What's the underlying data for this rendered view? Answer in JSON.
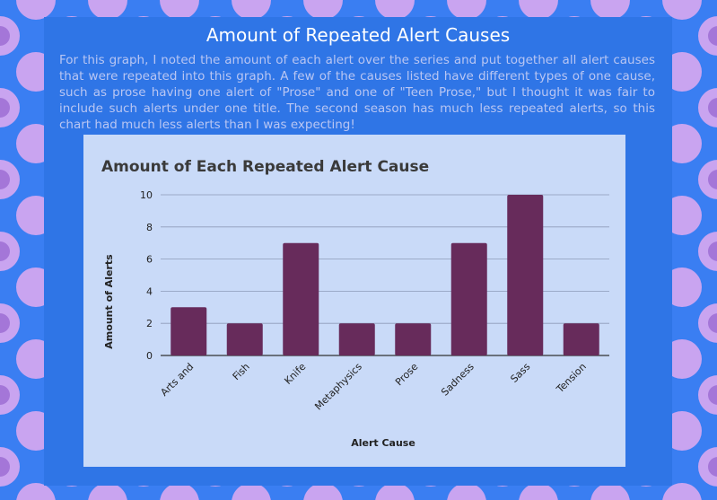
{
  "page": {
    "title": "Amount of Repeated Alert Causes",
    "description": "For this graph, I noted the amount of each alert over the series and put together all alert causes that were repeated into this graph. A few of the causes listed have different types of one cause, such as prose having one alert of \"Prose\" and one of \"Teen Prose,\" but I thought it was fair to include such alerts under one title. The second season has much less repeated alerts, so this chart had much less alerts than I was expecting!"
  },
  "colors": {
    "background": "#3a7ef2",
    "panel": "#2f75e6",
    "pattern_light": "#c9a4f0",
    "pattern_dark": "#a476d8",
    "chart_background": "#c9daf8",
    "bar": "#672b5b"
  },
  "chart_data": {
    "type": "bar",
    "title": "Amount of Each Repeated Alert Cause",
    "xlabel": "Alert Cause",
    "ylabel": "Amount of Alerts",
    "categories": [
      "Arts and",
      "Fish",
      "Knife",
      "Metaphysics",
      "Prose",
      "Sadness",
      "Sass",
      "Tension"
    ],
    "values": [
      3,
      2,
      7,
      2,
      2,
      7,
      10,
      2
    ],
    "ylim": [
      0,
      10
    ],
    "yticks": [
      0,
      2,
      4,
      6,
      8,
      10
    ],
    "grid": true,
    "legend": "none"
  }
}
